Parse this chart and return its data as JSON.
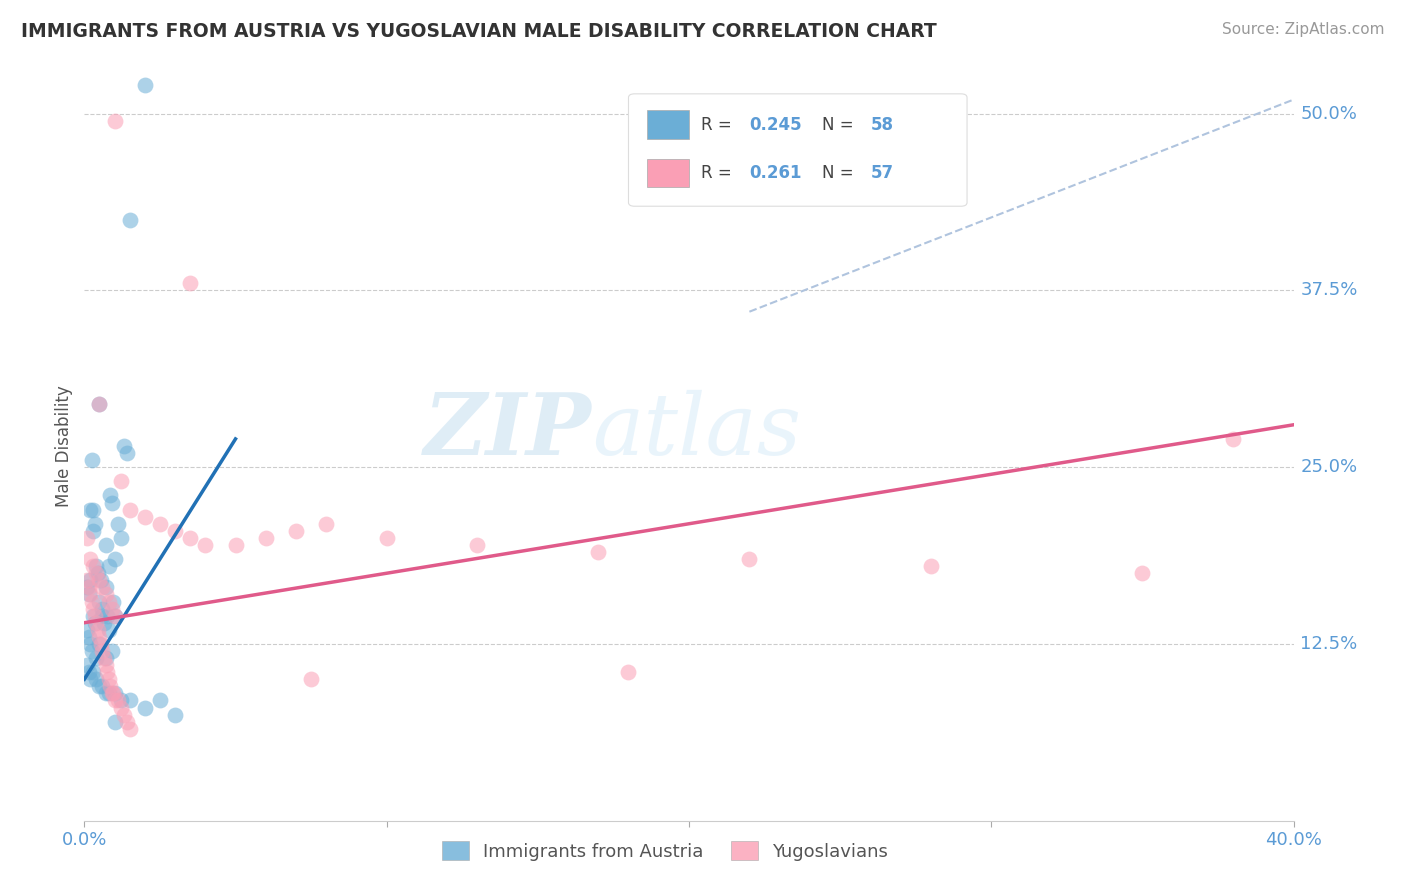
{
  "title": "IMMIGRANTS FROM AUSTRIA VS YUGOSLAVIAN MALE DISABILITY CORRELATION CHART",
  "source": "Source: ZipAtlas.com",
  "ylabel": "Male Disability",
  "blue_color": "#6baed6",
  "pink_color": "#fa9fb5",
  "blue_line_color": "#2171b5",
  "pink_line_color": "#e05a8a",
  "dashed_line_color": "#b0c4de",
  "title_color": "#333333",
  "watermark": "ZIPatlas",
  "blue_label": "Immigrants from Austria",
  "pink_label": "Yugoslavians",
  "xlim": [
    0,
    40
  ],
  "ylim": [
    0,
    53
  ],
  "blue_line": [
    0.0,
    10.0,
    5.0,
    27.0
  ],
  "pink_line": [
    0.0,
    14.0,
    40.0,
    28.0
  ],
  "dashed_line": [
    22,
    36,
    40,
    51
  ],
  "blue_scatter_x": [
    0.1,
    0.15,
    0.2,
    0.25,
    0.3,
    0.35,
    0.4,
    0.45,
    0.5,
    0.55,
    0.6,
    0.65,
    0.7,
    0.75,
    0.8,
    0.85,
    0.9,
    0.95,
    1.0,
    1.1,
    1.2,
    1.3,
    1.4,
    0.1,
    0.15,
    0.2,
    0.25,
    0.3,
    0.35,
    0.4,
    0.5,
    0.6,
    0.7,
    0.8,
    0.9,
    1.0,
    1.5,
    2.0,
    0.1,
    0.15,
    0.2,
    0.3,
    0.4,
    0.5,
    0.6,
    0.7,
    0.8,
    1.0,
    1.2,
    1.5,
    2.0,
    2.5,
    3.0,
    0.5,
    1.0,
    0.2,
    0.3,
    0.7
  ],
  "blue_scatter_y": [
    16.5,
    16.0,
    22.0,
    25.5,
    20.5,
    21.0,
    18.0,
    17.5,
    15.5,
    17.0,
    14.5,
    14.0,
    16.5,
    14.5,
    18.0,
    23.0,
    22.5,
    15.5,
    18.5,
    21.0,
    20.0,
    26.5,
    26.0,
    13.5,
    13.0,
    12.5,
    12.0,
    14.5,
    14.0,
    11.5,
    12.5,
    15.0,
    11.5,
    13.5,
    12.0,
    14.5,
    42.5,
    52.0,
    11.0,
    10.5,
    10.0,
    10.5,
    10.0,
    9.5,
    9.5,
    9.0,
    9.0,
    9.0,
    8.5,
    8.5,
    8.0,
    8.5,
    7.5,
    29.5,
    7.0,
    17.0,
    22.0,
    19.5
  ],
  "pink_scatter_x": [
    0.1,
    0.15,
    0.2,
    0.25,
    0.3,
    0.35,
    0.4,
    0.45,
    0.5,
    0.55,
    0.6,
    0.65,
    0.7,
    0.75,
    0.8,
    0.85,
    0.9,
    0.95,
    1.0,
    1.1,
    1.2,
    1.3,
    1.4,
    1.5,
    0.1,
    0.2,
    0.3,
    0.4,
    0.5,
    0.6,
    0.7,
    0.8,
    0.9,
    1.0,
    1.5,
    2.0,
    2.5,
    3.0,
    3.5,
    4.0,
    5.0,
    6.0,
    7.0,
    8.0,
    10.0,
    13.0,
    17.0,
    22.0,
    28.0,
    35.0,
    38.0,
    1.0,
    3.5,
    7.5,
    18.0,
    0.5,
    1.2
  ],
  "pink_scatter_y": [
    17.0,
    16.5,
    16.0,
    15.5,
    15.0,
    14.5,
    14.0,
    13.5,
    13.0,
    12.5,
    12.0,
    11.5,
    11.0,
    10.5,
    10.0,
    9.5,
    9.0,
    9.0,
    8.5,
    8.5,
    8.0,
    7.5,
    7.0,
    6.5,
    20.0,
    18.5,
    18.0,
    17.5,
    17.0,
    16.5,
    16.0,
    15.5,
    15.0,
    14.5,
    22.0,
    21.5,
    21.0,
    20.5,
    20.0,
    19.5,
    19.5,
    20.0,
    20.5,
    21.0,
    20.0,
    19.5,
    19.0,
    18.5,
    18.0,
    17.5,
    27.0,
    49.5,
    38.0,
    10.0,
    10.5,
    29.5,
    24.0
  ]
}
